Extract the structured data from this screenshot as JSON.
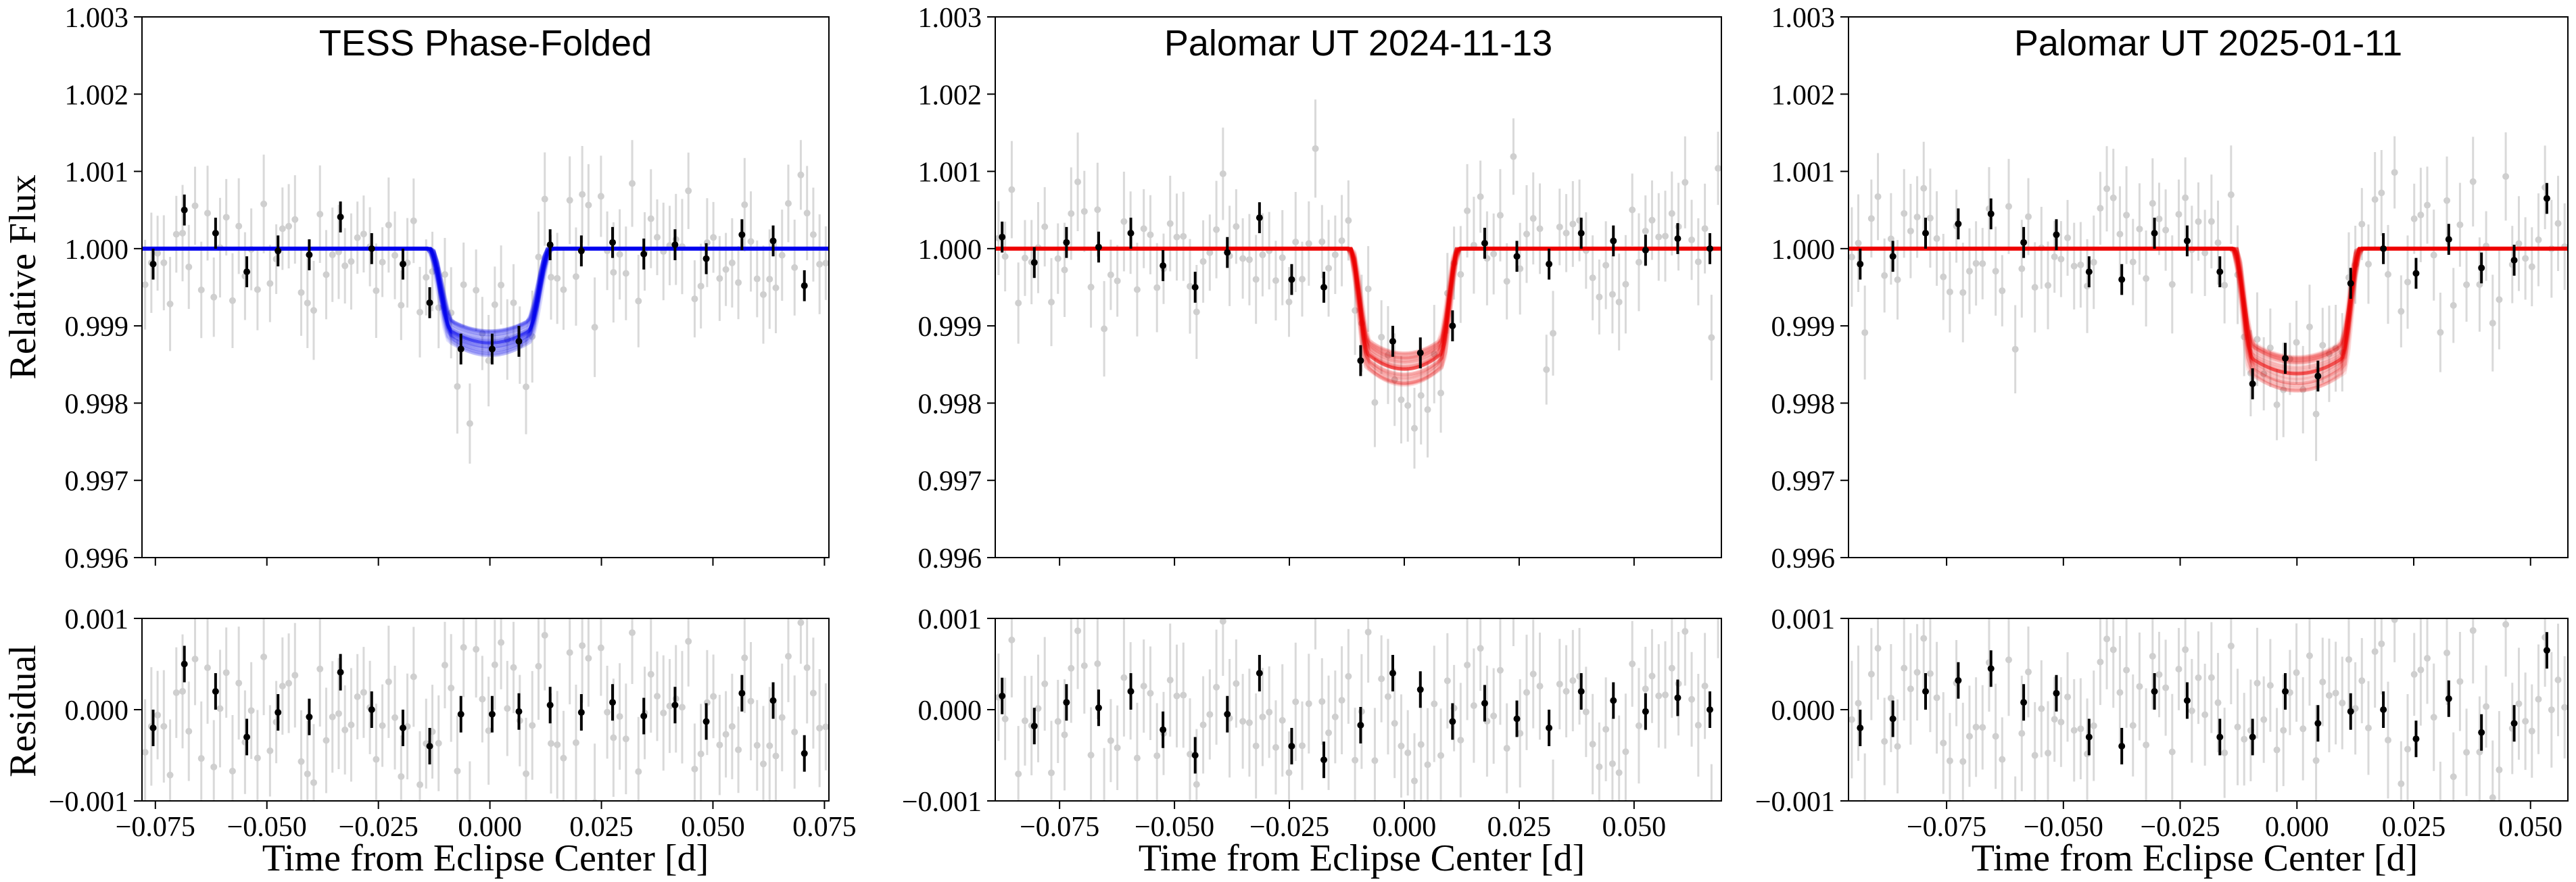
{
  "figure": {
    "ylabel_top": "Relative Flux",
    "ylabel_bottom": "Residual",
    "xlabel": "Time from Eclipse Center [d]"
  },
  "chart_data": [
    {
      "type": "scatter",
      "title": "TESS Phase-Folded",
      "model_color": "#0000ee",
      "xlim": [
        -0.078,
        0.076
      ],
      "ylim_top": [
        0.996,
        1.003
      ],
      "ylim_bottom": [
        -0.001,
        0.001
      ],
      "x_ticks": [
        -0.075,
        -0.05,
        -0.025,
        0.0,
        0.025,
        0.05,
        0.075
      ],
      "x_tick_labels": [
        "−0.075",
        "−0.050",
        "−0.025",
        "0.000",
        "0.025",
        "0.050",
        "0.075"
      ],
      "y_ticks_top": [
        0.996,
        0.997,
        0.998,
        0.999,
        1.0,
        1.001,
        1.002,
        1.003
      ],
      "y_tick_labels_top": [
        "0.996",
        "0.997",
        "0.998",
        "0.999",
        "1.000",
        "1.001",
        "1.002",
        "1.003"
      ],
      "y_ticks_bottom": [
        -0.001,
        0.0,
        0.001
      ],
      "y_tick_labels_bottom": [
        "−0.001",
        "0.000",
        "0.001"
      ],
      "transit": {
        "t1": -0.0136,
        "t2": -0.0085,
        "t3": 0.0085,
        "t4": 0.0136,
        "depth": 0.00122
      },
      "binned": {
        "x": [
          -0.0755,
          -0.0685,
          -0.0615,
          -0.0545,
          -0.0475,
          -0.0405,
          -0.0335,
          -0.0265,
          -0.0195,
          -0.0135,
          -0.0065,
          0.0005,
          0.0065,
          0.0135,
          0.0205,
          0.0275,
          0.0345,
          0.0415,
          0.0485,
          0.0565,
          0.0635,
          0.0705
        ],
        "y": [
          0.9998,
          1.0005,
          1.0002,
          0.9997,
          0.99997,
          0.99992,
          1.00041,
          1.0,
          0.9998,
          0.9993,
          0.9987,
          0.9987,
          0.9988,
          1.00005,
          0.99997,
          1.00008,
          0.99993,
          1.00005,
          0.99987,
          1.00018,
          1.0001,
          0.99952
        ],
        "err": [
          0.0002,
          0.0002,
          0.0002,
          0.0002,
          0.0002,
          0.0002,
          0.0002,
          0.0002,
          0.0002,
          0.0002,
          0.0002,
          0.0002,
          0.0002,
          0.0002,
          0.0002,
          0.0002,
          0.0002,
          0.0002,
          0.0002,
          0.0002,
          0.0002,
          0.0002
        ],
        "residual": [
          -0.0002,
          0.0005,
          0.0002,
          -0.0003,
          -3e-05,
          -8e-05,
          0.00041,
          0.0,
          -0.0002,
          -0.0004,
          -5e-05,
          -5e-05,
          -2e-05,
          5e-05,
          -3e-05,
          8e-05,
          -7e-05,
          5e-05,
          -0.00013,
          0.00018,
          0.0001,
          -0.00048
        ]
      }
    },
    {
      "type": "scatter",
      "title": "Palomar UT 2024-11-13",
      "model_color": "#ee0000",
      "xlim": [
        -0.089,
        0.069
      ],
      "ylim_top": [
        0.996,
        1.003
      ],
      "ylim_bottom": [
        -0.001,
        0.001
      ],
      "x_ticks": [
        -0.075,
        -0.05,
        -0.025,
        0.0,
        0.025,
        0.05
      ],
      "x_tick_labels": [
        "−0.075",
        "−0.050",
        "−0.025",
        "0.000",
        "0.025",
        "0.050"
      ],
      "y_ticks_top": [
        0.996,
        0.997,
        0.998,
        0.999,
        1.0,
        1.001,
        1.002,
        1.003
      ],
      "y_tick_labels_top": [
        "0.996",
        "0.997",
        "0.998",
        "0.999",
        "1.000",
        "1.001",
        "1.002",
        "1.003"
      ],
      "y_ticks_bottom": [
        -0.001,
        0.0,
        0.001
      ],
      "y_tick_labels_bottom": [
        "−0.001",
        "0.000",
        "0.001"
      ],
      "transit": {
        "t1": -0.0118,
        "t2": -0.0078,
        "t3": 0.0078,
        "t4": 0.0118,
        "depth": 0.00156
      },
      "binned": {
        "x": [
          -0.0875,
          -0.0805,
          -0.0735,
          -0.0665,
          -0.0595,
          -0.0525,
          -0.0455,
          -0.0385,
          -0.0315,
          -0.0245,
          -0.0175,
          -0.0095,
          -0.0025,
          0.0035,
          0.0105,
          0.0175,
          0.0245,
          0.0315,
          0.0385,
          0.0455,
          0.0525,
          0.0595,
          0.0665
        ],
        "y": [
          1.00015,
          0.99982,
          1.00008,
          1.00002,
          1.0002,
          0.99978,
          0.9995,
          0.99995,
          1.0004,
          0.9996,
          0.9995,
          0.99855,
          0.9988,
          0.99865,
          0.999,
          1.00007,
          0.9999,
          0.9998,
          1.0002,
          1.0001,
          0.99998,
          1.00013,
          1.0
        ],
        "err": [
          0.0002,
          0.0002,
          0.0002,
          0.0002,
          0.0002,
          0.0002,
          0.0002,
          0.0002,
          0.0002,
          0.0002,
          0.0002,
          0.0002,
          0.0002,
          0.0002,
          0.0002,
          0.0002,
          0.0002,
          0.0002,
          0.0002,
          0.0002,
          0.0002,
          0.0002,
          0.0002
        ],
        "residual": [
          0.00015,
          -0.00018,
          8e-05,
          2e-05,
          0.0002,
          -0.00022,
          -0.0005,
          -5e-05,
          0.0004,
          -0.0004,
          -0.00055,
          -0.00017,
          0.0004,
          0.00022,
          -0.00013,
          7e-05,
          -0.0001,
          -0.0002,
          0.0002,
          0.0001,
          -2e-05,
          0.00013,
          0.0
        ]
      }
    },
    {
      "type": "scatter",
      "title": "Palomar UT 2025-01-11",
      "model_color": "#ee0000",
      "xlim": [
        -0.096,
        0.058
      ],
      "ylim_top": [
        0.996,
        1.003
      ],
      "ylim_bottom": [
        -0.001,
        0.001
      ],
      "x_ticks": [
        -0.075,
        -0.05,
        -0.025,
        0.0,
        0.025,
        0.05
      ],
      "x_tick_labels": [
        "−0.075",
        "−0.050",
        "−0.025",
        "0.000",
        "0.025",
        "0.050"
      ],
      "y_ticks_top": [
        0.996,
        0.997,
        0.998,
        0.999,
        1.0,
        1.001,
        1.002,
        1.003
      ],
      "y_tick_labels_top": [
        "0.996",
        "0.997",
        "0.998",
        "0.999",
        "1.000",
        "1.001",
        "1.002",
        "1.003"
      ],
      "y_ticks_bottom": [
        -0.001,
        0.0,
        0.001
      ],
      "y_tick_labels_bottom": [
        "−0.001",
        "0.000",
        "0.001"
      ],
      "transit": {
        "t1": -0.0135,
        "t2": -0.0095,
        "t3": 0.0095,
        "t4": 0.0135,
        "depth": 0.00162
      },
      "binned": {
        "x": [
          -0.0935,
          -0.0865,
          -0.0795,
          -0.0725,
          -0.0655,
          -0.0585,
          -0.0515,
          -0.0445,
          -0.0375,
          -0.0305,
          -0.0235,
          -0.0165,
          -0.0095,
          -0.0025,
          0.0045,
          0.0115,
          0.0185,
          0.0255,
          0.0325,
          0.0395,
          0.0465,
          0.0535
        ],
        "y": [
          0.9998,
          0.9999,
          1.0002,
          1.00032,
          1.00045,
          1.00008,
          1.00018,
          0.9997,
          0.9996,
          1.0002,
          1.0001,
          0.9997,
          0.99825,
          0.99858,
          0.99835,
          0.99955,
          1.0,
          0.99968,
          1.00012,
          0.99975,
          0.99985,
          1.00065
        ],
        "err": [
          0.0002,
          0.0002,
          0.0002,
          0.0002,
          0.0002,
          0.0002,
          0.0002,
          0.0002,
          0.0002,
          0.0002,
          0.0002,
          0.0002,
          0.0002,
          0.0002,
          0.0002,
          0.0002,
          0.0002,
          0.0002,
          0.0002,
          0.0002,
          0.0002,
          0.0002
        ],
        "residual": [
          -0.0002,
          -0.0001,
          0.0002,
          0.00032,
          0.00045,
          8e-05,
          0.00018,
          -0.0003,
          -0.0004,
          0.0002,
          0.0001,
          -0.0003,
          -0.0003,
          0.0002,
          -0.00015,
          -2e-05,
          0.0,
          -0.00032,
          0.00012,
          -0.00025,
          -0.00015,
          0.00065
        ]
      }
    }
  ]
}
